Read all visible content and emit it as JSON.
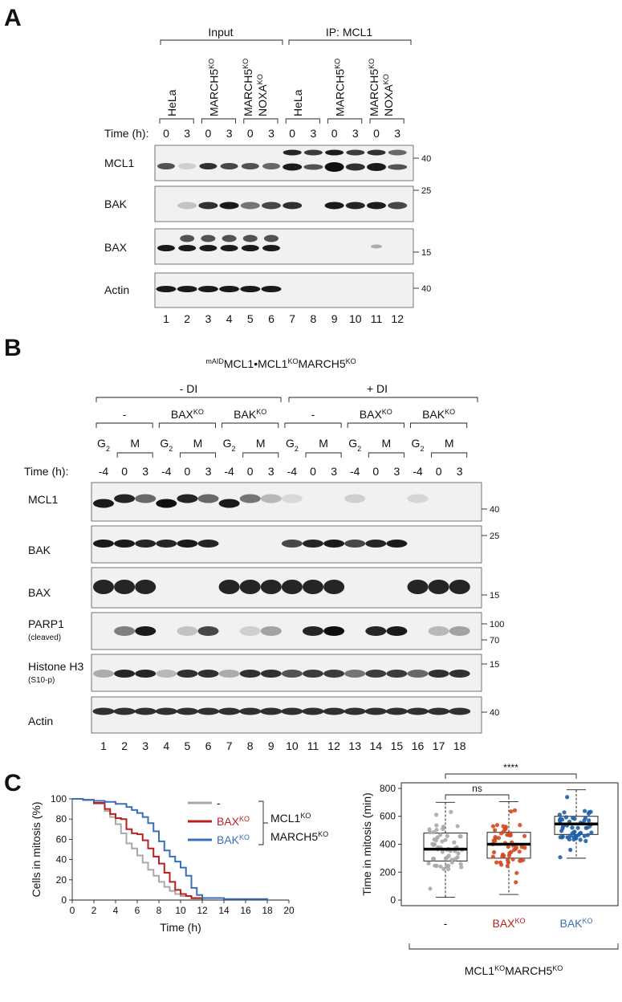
{
  "panel_a": {
    "letter": "A",
    "group_labels": [
      "Input",
      "IP: MCL1"
    ],
    "cell_line_labels": [
      "HeLa",
      "MARCH5",
      "MARCH5",
      "NOXA",
      "HeLa",
      "MARCH5",
      "MARCH5",
      "NOXA"
    ],
    "ko_sup": "KO",
    "time_label": "Time (h):",
    "time_values": [
      "0",
      "3",
      "0",
      "3",
      "0",
      "3",
      "0",
      "3",
      "0",
      "3",
      "0",
      "3"
    ],
    "blots": [
      {
        "name": "MCL1",
        "markers": [
          "40"
        ]
      },
      {
        "name": "BAK",
        "markers": [
          "25"
        ]
      },
      {
        "name": "BAX",
        "markers": [
          "15"
        ]
      },
      {
        "name": "Actin",
        "markers": [
          "40"
        ]
      }
    ],
    "lane_numbers": [
      "1",
      "2",
      "3",
      "4",
      "5",
      "6",
      "7",
      "8",
      "9",
      "10",
      "11",
      "12"
    ]
  },
  "panel_b": {
    "letter": "B",
    "title_sup1": "mAID",
    "title_main": "MCL1•MCL1",
    "title_sup2": "KO",
    "title_mid": "MARCH5",
    "title_sup3": "KO",
    "treatments": [
      "- DI",
      "+ DI"
    ],
    "genotypes": [
      "-",
      "BAX",
      "BAK",
      "-",
      "BAX",
      "BAK"
    ],
    "ko_sup": "KO",
    "phase_g2": "G",
    "phase_g2_sub": "2",
    "phase_m": "M",
    "time_label": "Time (h):",
    "time_values": [
      "-4",
      "0",
      "3",
      "-4",
      "0",
      "3",
      "-4",
      "0",
      "3",
      "-4",
      "0",
      "3",
      "-4",
      "0",
      "3",
      "-4",
      "0",
      "3"
    ],
    "blots": [
      {
        "name": "MCL1",
        "sub": "",
        "markers": [
          "40"
        ]
      },
      {
        "name": "BAK",
        "sub": "",
        "markers": [
          "25"
        ]
      },
      {
        "name": "BAX",
        "sub": "",
        "markers": [
          "15"
        ]
      },
      {
        "name": "PARP1",
        "sub": "(cleaved)",
        "markers": [
          "100",
          "70"
        ]
      },
      {
        "name": "Histone H3",
        "sub": "(S10-p)",
        "markers": [
          "15"
        ]
      },
      {
        "name": "Actin",
        "sub": "",
        "markers": [
          "40"
        ]
      }
    ],
    "lane_numbers": [
      "1",
      "2",
      "3",
      "4",
      "5",
      "6",
      "7",
      "8",
      "9",
      "10",
      "11",
      "12",
      "13",
      "14",
      "15",
      "16",
      "17",
      "18"
    ]
  },
  "panel_c": {
    "letter": "C",
    "legend_labels": [
      "-",
      "BAX",
      "BAK"
    ],
    "legend_sup": "KO",
    "legend_bracket_line1": "MCL1",
    "legend_bracket_line2": "MARCH5",
    "colors": {
      "wt": "#a8a8a8",
      "bax": "#b8201f",
      "bak": "#3a6fb7",
      "bax_dots": "#d24a22",
      "bak_dots": "#1f5fa8"
    },
    "significance": [
      "ns",
      "****"
    ],
    "box_group_label_main": "MCL1",
    "box_group_label_mid": "MARCH5",
    "box_group_label_sup": "KO",
    "chart_data": [
      {
        "type": "line",
        "xlabel": "Time (h)",
        "ylabel": "Cells in mitosis (%)",
        "xlim": [
          0,
          20
        ],
        "ylim": [
          0,
          100
        ],
        "xticks": [
          0,
          2,
          4,
          6,
          8,
          10,
          12,
          14,
          16,
          18,
          20
        ],
        "yticks": [
          0,
          20,
          40,
          60,
          80,
          100
        ],
        "series": [
          {
            "name": "-",
            "x": [
              0,
              1,
              2,
              3,
              3.5,
              4,
              4.5,
              5,
              5.5,
              6,
              6.5,
              7,
              7.5,
              8,
              8.5,
              9,
              9.5,
              10,
              11,
              12
            ],
            "y": [
              100,
              99,
              95,
              88,
              82,
              75,
              66,
              56,
              51,
              44,
              37,
              30,
              24,
              18,
              13,
              9,
              6,
              4,
              1,
              0
            ]
          },
          {
            "name": "BAX",
            "x": [
              0,
              1,
              2,
              3,
              3.5,
              4,
              4.5,
              5,
              5.5,
              6,
              6.5,
              7,
              7.5,
              8,
              8.5,
              9,
              9.5,
              10,
              10.5,
              11,
              12
            ],
            "y": [
              100,
              99,
              96,
              90,
              85,
              81,
              80,
              70,
              66,
              65,
              59,
              51,
              43,
              36,
              27,
              18,
              10,
              6,
              4,
              2,
              0
            ]
          },
          {
            "name": "BAK",
            "x": [
              0,
              1,
              2,
              3,
              4,
              5,
              5.5,
              6,
              6.5,
              7,
              7.5,
              8,
              8.5,
              9,
              9.5,
              10,
              10.5,
              11,
              11.5,
              12,
              14,
              18
            ],
            "y": [
              100,
              99,
              98,
              97,
              95,
              92,
              89,
              86,
              82,
              76,
              68,
              58,
              49,
              43,
              38,
              32,
              24,
              12,
              5,
              2,
              1,
              0
            ]
          }
        ]
      },
      {
        "type": "box",
        "ylabel": "Time in mitosis (min)",
        "ylim": [
          -40,
          840
        ],
        "yticks": [
          0,
          200,
          400,
          600,
          800
        ],
        "categories": [
          "-",
          "BAX",
          "BAK"
        ],
        "boxes": [
          {
            "min": 20,
            "q1": 280,
            "median": 365,
            "q3": 480,
            "max": 700
          },
          {
            "min": 40,
            "q1": 300,
            "median": 400,
            "q3": 485,
            "max": 705
          },
          {
            "min": 300,
            "q1": 470,
            "median": 545,
            "q3": 600,
            "max": 790
          }
        ]
      }
    ]
  }
}
